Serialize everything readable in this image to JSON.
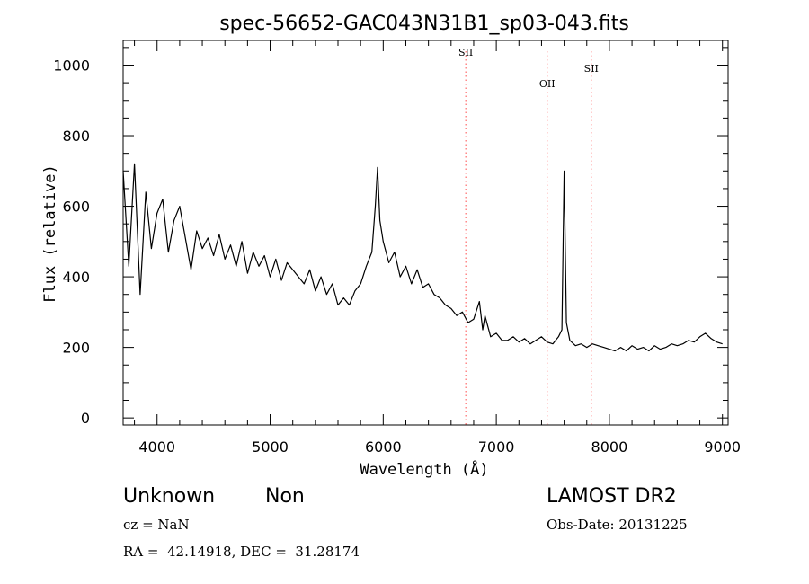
{
  "chart_data": {
    "type": "line",
    "title": "spec-56652-GAC043N31B1_sp03-043.fits",
    "xlabel": "Wavelength (Å)",
    "ylabel": "Flux (relative)",
    "xlim": [
      3700,
      9050
    ],
    "ylim": [
      -20,
      1070
    ],
    "x_ticks": [
      4000,
      5000,
      6000,
      7000,
      8000,
      9000
    ],
    "y_ticks": [
      0,
      200,
      400,
      600,
      800,
      1000
    ],
    "grid": false,
    "line_color": "#000000",
    "marker_color": "#ff4d4d",
    "series": [
      {
        "x": [
          3700,
          3750,
          3800,
          3850,
          3900,
          3950,
          4000,
          4050,
          4100,
          4150,
          4200,
          4250,
          4300,
          4350,
          4400,
          4450,
          4500,
          4550,
          4600,
          4650,
          4700,
          4750,
          4800,
          4850,
          4900,
          4950,
          5000,
          5050,
          5100,
          5150,
          5200,
          5250,
          5300,
          5350,
          5400,
          5450,
          5500,
          5550,
          5600,
          5650,
          5700,
          5750,
          5800,
          5850,
          5900,
          5930,
          5950,
          5970,
          6000,
          6050,
          6100,
          6150,
          6200,
          6250,
          6300,
          6350,
          6400,
          6450,
          6500,
          6550,
          6600,
          6650,
          6700,
          6750,
          6800,
          6850,
          6880,
          6900,
          6950,
          7000,
          7050,
          7100,
          7150,
          7200,
          7250,
          7300,
          7350,
          7400,
          7450,
          7500,
          7550,
          7580,
          7600,
          7620,
          7650,
          7700,
          7750,
          7800,
          7850,
          7900,
          7950,
          8000,
          8050,
          8100,
          8150,
          8200,
          8250,
          8300,
          8350,
          8400,
          8450,
          8500,
          8550,
          8600,
          8650,
          8700,
          8750,
          8800,
          8850,
          8900,
          8950,
          9000
        ],
        "y": [
          700,
          430,
          720,
          350,
          640,
          480,
          580,
          620,
          470,
          560,
          600,
          510,
          420,
          530,
          480,
          510,
          460,
          520,
          450,
          490,
          430,
          500,
          410,
          470,
          430,
          460,
          400,
          450,
          390,
          440,
          420,
          400,
          380,
          420,
          360,
          400,
          350,
          380,
          320,
          340,
          320,
          360,
          380,
          430,
          470,
          600,
          710,
          560,
          500,
          440,
          470,
          400,
          430,
          380,
          420,
          370,
          380,
          350,
          340,
          320,
          310,
          290,
          300,
          270,
          280,
          330,
          250,
          290,
          230,
          240,
          220,
          220,
          230,
          215,
          225,
          210,
          220,
          230,
          215,
          210,
          230,
          250,
          700,
          270,
          220,
          205,
          210,
          200,
          210,
          205,
          200,
          195,
          190,
          200,
          190,
          205,
          195,
          200,
          190,
          205,
          195,
          200,
          210,
          205,
          210,
          220,
          215,
          230,
          240,
          225,
          215,
          210
        ]
      }
    ],
    "markers": [
      {
        "label": "SII",
        "x": 6730
      },
      {
        "label": "OII",
        "x": 7450
      },
      {
        "label": "SII",
        "x": 7840
      }
    ]
  },
  "info": {
    "class": "Unknown",
    "subclass": "Non",
    "survey": "LAMOST DR2",
    "redshift": "cz = NaN",
    "obs_date": "Obs-Date: 20131225",
    "coords": "RA =  42.14918, DEC =  31.28174"
  }
}
